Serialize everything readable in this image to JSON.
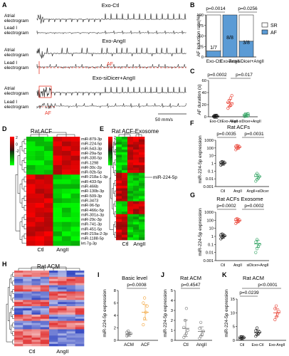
{
  "panels": {
    "A": {
      "letter": "A",
      "rows": [
        {
          "title": "Exo-Ctl",
          "row_labels": [
            "Atrial",
            "electrogram",
            "Lead I",
            "electrogram"
          ]
        },
        {
          "title": "Exo-AngII",
          "row_labels": [
            "Atrial",
            "electrogram",
            "Lead I",
            "electrogram"
          ],
          "annotation": "AF"
        },
        {
          "title": "Exo-siDicer+AngII",
          "row_labels": [
            "Atrial",
            "electrogram",
            "Lead I",
            "electrogram"
          ],
          "annotation": "AF"
        }
      ],
      "scale": "50 mm/s"
    },
    "B": {
      "letter": "B",
      "p1": "p=0.0014",
      "p2": "p=0.0256",
      "ylabel": "AF induction rate(%)",
      "legend": [
        "SR",
        "AF"
      ],
      "bar_labels": [
        "1/7",
        "8/8",
        "3/8"
      ]
    },
    "C": {
      "letter": "C",
      "p1": "p=0.0002",
      "p2": "p=0.017",
      "ylabel": "AF duration (s)"
    },
    "D": {
      "letter": "D",
      "title": "Rat ACF",
      "groups": [
        "Ctl",
        "AngII"
      ],
      "genes": [
        "miR-879-3p",
        "miR-224-5p",
        "miR-543-3p",
        "miR-29a-5p",
        "miR-330-5p",
        "miR-1298",
        "miR-30c-2p",
        "miR-92b-5p",
        "miR-218a-1-3p",
        "miR-433-5p",
        "miR-466b",
        "miR-130b-3p",
        "miR-509-3p",
        "miR-3473",
        "miR-96-5p",
        "miR-466c-5p",
        "miR-301a-3p",
        "miR-29c-3p",
        "miR-741-3p",
        "miR-451-5p",
        "miR-219a-2-3p",
        "miR-1188-5p",
        "let-7g-3p"
      ]
    },
    "E": {
      "letter": "E",
      "title": "Rat ACF-Exosome",
      "groups": [
        "Ctl",
        "AngII"
      ],
      "highlight": "miR-224-5p"
    },
    "F": {
      "letter": "F",
      "title": "Rat ACFs",
      "p1": "p=0.0035",
      "p2": "p=0.0031",
      "ylabel": "miR-224-5p expression"
    },
    "G": {
      "letter": "G",
      "title": "Rat ACFs Exosome",
      "p1": "p=0.0002",
      "p2": "p=0.0002",
      "ylabel": "miR-224-5p expression"
    },
    "H": {
      "letter": "H",
      "title": "Rat ACM",
      "groups": [
        "Ctl",
        "AngII"
      ]
    },
    "I": {
      "letter": "I",
      "title": "Basic level",
      "p1": "p=0.0008",
      "ylabel": "miR-224-5p expression"
    },
    "J": {
      "letter": "J",
      "title": "Rat ACM",
      "p1": "p=0.4547",
      "ylabel": "miR-224-5p expression"
    },
    "K": {
      "letter": "K",
      "title": "Rat ACM",
      "p1": "p=0.0239",
      "p2": "p<0.0001",
      "ylabel": "miR-224-5p expression"
    }
  },
  "colors": {
    "sr": "#ffffff",
    "af": "#5b9bd5",
    "red": "#e8392b",
    "orange": "#f2a33a",
    "green": "#2ca25f"
  },
  "chart_data": [
    {
      "id": "B",
      "type": "bar",
      "categories": [
        "Exo-Ctl",
        "Exo-AngII",
        "Exo-siDicer+AngII"
      ],
      "series": [
        {
          "name": "SR",
          "values": [
            85.7,
            0,
            62.5
          ]
        },
        {
          "name": "AF",
          "values": [
            14.3,
            100,
            37.5
          ]
        }
      ],
      "ylabel": "AF induction rate(%)",
      "ylim": [
        0,
        100
      ],
      "yticks": [
        0,
        25,
        50,
        75,
        100
      ],
      "legend": "right",
      "stacked": true
    },
    {
      "id": "C",
      "type": "scatter",
      "categories": [
        "Exo-Ctl",
        "Exo-AngII",
        "Exo-siDicer+AngII"
      ],
      "points": [
        [
          0.2,
          0.4,
          0.6,
          0.8,
          1.0,
          1.3,
          1.6
        ],
        [
          14,
          17,
          19,
          21,
          24,
          27,
          31,
          35
        ],
        [
          0.5,
          1,
          1.5,
          2,
          3,
          4,
          4.5,
          5
        ]
      ],
      "means": [
        0.9,
        23,
        2.8
      ],
      "ylabel": "AF duration (s)",
      "ylim": [
        0,
        60
      ],
      "yticks": [
        0,
        20,
        40,
        60
      ]
    },
    {
      "id": "F",
      "type": "scatter",
      "log": true,
      "categories": [
        "Ctl",
        "AngII",
        "AngII+siDicer"
      ],
      "points": [
        [
          0.6,
          0.8,
          1.0,
          1.2,
          1.4,
          1.7
        ],
        [
          60,
          90,
          110,
          140,
          170,
          200
        ],
        [
          0.005,
          0.008,
          0.012,
          0.02,
          0.03,
          0.05
        ]
      ],
      "means": [
        1.1,
        130,
        0.02
      ],
      "ylabel": "miR-224-5p expression",
      "ylim": [
        0.001,
        1000
      ],
      "yticks": [
        0.001,
        0.01,
        0.1,
        1,
        10,
        100,
        1000
      ]
    },
    {
      "id": "G",
      "type": "scatter",
      "log": true,
      "categories": [
        "Ctl",
        "AngII",
        "siDicer+AngII"
      ],
      "points": [
        [
          0.5,
          0.7,
          1.0,
          1.2,
          1.6,
          2.0
        ],
        [
          40,
          60,
          80,
          100,
          130,
          160
        ],
        [
          0.01,
          0.03,
          0.06,
          0.1,
          0.2,
          0.4
        ]
      ],
      "means": [
        1.1,
        90,
        0.12
      ],
      "ylabel": "miR-224-5p expression",
      "ylim": [
        0.001,
        1000
      ],
      "yticks": [
        0.001,
        0.01,
        0.1,
        1,
        10,
        100,
        1000
      ]
    },
    {
      "id": "I",
      "type": "scatter",
      "categories": [
        "ACM",
        "ACF"
      ],
      "points": [
        [
          0.7,
          0.9,
          1.0,
          1.1,
          1.3,
          1.5
        ],
        [
          2.5,
          3.5,
          4.5,
          5.5,
          6.0,
          6.8
        ]
      ],
      "means": [
        1.0,
        4.5
      ],
      "ylabel": "miR-224-5p expression",
      "ylim": [
        0,
        8
      ],
      "yticks": [
        0,
        2,
        4,
        6,
        8
      ]
    },
    {
      "id": "J",
      "type": "scatter",
      "categories": [
        "Ctl",
        "AngII"
      ],
      "points": [
        [
          0.3,
          0.5,
          0.7,
          1.0,
          1.3,
          2.0,
          3.2
        ],
        [
          0.2,
          0.4,
          0.6,
          0.9,
          1.2,
          1.8
        ]
      ],
      "means": [
        1.2,
        0.9
      ],
      "ylabel": "miR-224-5p expression",
      "ylim": [
        0,
        5
      ],
      "yticks": [
        0,
        1,
        2,
        3,
        4,
        5
      ]
    },
    {
      "id": "K",
      "type": "scatter",
      "categories": [
        "Ctl",
        "Exo-Ctl",
        "Exo-AngII"
      ],
      "points": [
        [
          0.5,
          0.7,
          0.9,
          1.0,
          1.1,
          1.3
        ],
        [
          1.5,
          2.0,
          2.5,
          3.0,
          3.5,
          4.5
        ],
        [
          7.5,
          8.5,
          9.5,
          10.5,
          11.5,
          12.5
        ]
      ],
      "means": [
        0.9,
        2.8,
        10
      ],
      "ylabel": "miR-224-5p expression",
      "ylim": [
        0,
        15
      ],
      "yticks": [
        0,
        5,
        10,
        15
      ]
    }
  ]
}
